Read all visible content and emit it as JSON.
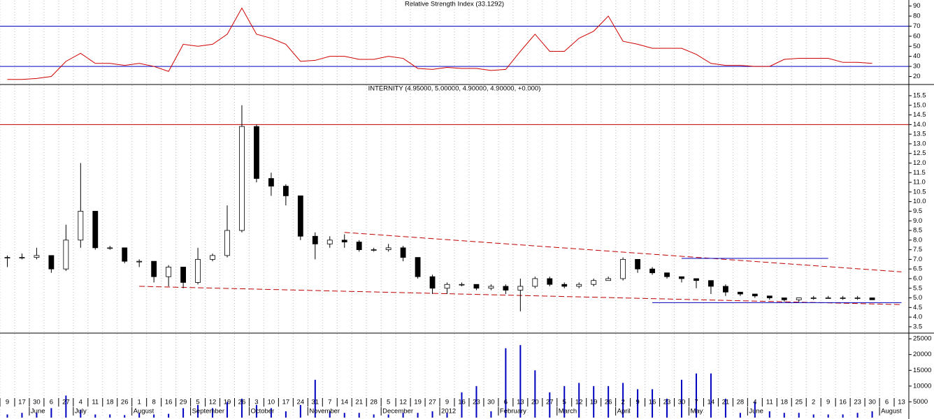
{
  "chart_data": [
    {
      "type": "line",
      "title": "Relative Strength Index (33.1292)",
      "color": "#d00000",
      "values": [
        17,
        17,
        18,
        20,
        35,
        43,
        33,
        33,
        31,
        33,
        30,
        25,
        52,
        50,
        52,
        62,
        88,
        62,
        58,
        52,
        35,
        36,
        40,
        40,
        37,
        37,
        40,
        38,
        28,
        27,
        29,
        28,
        28,
        26,
        27,
        45,
        62,
        45,
        45,
        58,
        65,
        80,
        55,
        52,
        48,
        48,
        48,
        42,
        33,
        31,
        31,
        30,
        30,
        37,
        38,
        38,
        38,
        34,
        34,
        33,
        null,
        null
      ],
      "ylim": [
        12,
        96
      ],
      "yticks": [
        20,
        30,
        40,
        50,
        60,
        70,
        80,
        90
      ],
      "hlines": [
        {
          "value": 30,
          "color": "#0000c0"
        },
        {
          "value": 70,
          "color": "#0000c0"
        }
      ],
      "grid": true
    },
    {
      "type": "candlestick",
      "title": "INTERNITY (4.95000, 5.00000, 4.90000, 4.90000, +0.000)",
      "open": [
        7.1,
        7.1,
        7.1,
        7.2,
        6.5,
        8.0,
        9.5,
        7.6,
        7.6,
        6.9,
        6.9,
        6.1,
        6.6,
        5.8,
        7.0,
        7.2,
        8.5,
        13.9,
        11.2,
        10.8,
        10.3,
        8.2,
        7.8,
        8.0,
        7.9,
        7.5,
        7.5,
        7.6,
        7.1,
        6.1,
        5.5,
        5.7,
        5.7,
        5.5,
        5.6,
        5.4,
        5.6,
        6.0,
        5.7,
        5.6,
        5.7,
        5.9,
        6.0,
        7.0,
        6.5,
        6.3,
        6.1,
        6.0,
        5.9,
        5.6,
        5.3,
        5.2,
        5.1,
        5.0,
        4.9,
        5.0,
        5.0,
        5.0,
        5.0,
        5.0,
        null,
        null
      ],
      "high": [
        7.2,
        7.3,
        7.6,
        7.2,
        8.8,
        12.0,
        9.5,
        7.7,
        7.6,
        7.0,
        6.9,
        6.7,
        6.6,
        7.6,
        7.3,
        9.8,
        15.0,
        14.0,
        11.5,
        10.9,
        10.3,
        8.4,
        8.2,
        8.3,
        8.0,
        7.6,
        7.8,
        7.7,
        7.1,
        6.2,
        5.8,
        5.8,
        5.7,
        5.7,
        5.7,
        6.0,
        6.1,
        6.1,
        5.8,
        5.8,
        6.0,
        6.1,
        7.1,
        7.0,
        6.6,
        6.3,
        6.1,
        6.0,
        5.9,
        5.7,
        5.3,
        5.2,
        5.1,
        5.0,
        5.0,
        5.1,
        5.1,
        5.1,
        5.1,
        5.0,
        null,
        null
      ],
      "low": [
        6.6,
        7.0,
        7.0,
        6.3,
        6.4,
        7.6,
        7.5,
        7.5,
        6.8,
        6.6,
        5.8,
        5.6,
        5.5,
        5.7,
        6.9,
        7.1,
        8.4,
        11.0,
        10.3,
        9.8,
        8.0,
        7.0,
        7.6,
        7.6,
        7.4,
        7.4,
        7.4,
        6.9,
        6.0,
        5.2,
        5.2,
        5.6,
        5.4,
        5.4,
        5.2,
        4.3,
        5.5,
        5.6,
        5.5,
        5.5,
        5.6,
        5.9,
        5.9,
        6.3,
        6.2,
        6.0,
        5.8,
        5.5,
        5.2,
        5.1,
        5.1,
        5.0,
        4.9,
        4.8,
        4.8,
        4.9,
        5.0,
        4.9,
        4.9,
        4.9,
        null,
        null
      ],
      "close": [
        7.1,
        7.1,
        7.2,
        6.5,
        8.0,
        9.5,
        7.6,
        7.6,
        6.9,
        6.9,
        6.1,
        6.6,
        5.8,
        7.0,
        7.2,
        8.5,
        13.9,
        11.2,
        10.8,
        10.3,
        8.2,
        7.8,
        8.0,
        7.9,
        7.5,
        7.5,
        7.6,
        7.1,
        6.1,
        5.5,
        5.7,
        5.7,
        5.5,
        5.6,
        5.4,
        5.6,
        6.0,
        5.7,
        5.6,
        5.7,
        5.9,
        6.0,
        7.0,
        6.5,
        6.3,
        6.1,
        6.0,
        5.9,
        5.6,
        5.3,
        5.2,
        5.1,
        5.0,
        4.9,
        5.0,
        5.0,
        5.0,
        5.0,
        5.0,
        4.9,
        null,
        null
      ],
      "ylim": [
        3.17,
        16.08
      ],
      "yticks": [
        {
          "value": 3.5,
          "label": "3.5"
        },
        {
          "value": 4,
          "label": "4.0"
        },
        {
          "value": 4.5,
          "label": "4.5"
        },
        {
          "value": 5,
          "label": "5.0"
        },
        {
          "value": 5.5,
          "label": "5.5"
        },
        {
          "value": 6,
          "label": "6.0"
        },
        {
          "value": 6.5,
          "label": "6.5"
        },
        {
          "value": 7,
          "label": "7.0"
        },
        {
          "value": 7.5,
          "label": "7.5"
        },
        {
          "value": 8,
          "label": "8.0"
        },
        {
          "value": 8.5,
          "label": "8.5"
        },
        {
          "value": 9,
          "label": "9.0"
        },
        {
          "value": 9.5,
          "label": "9.5"
        },
        {
          "value": 10,
          "label": "10.0"
        },
        {
          "value": 10.5,
          "label": "10.5"
        },
        {
          "value": 11,
          "label": "11.0"
        },
        {
          "value": 11.5,
          "label": "11.5"
        },
        {
          "value": 12,
          "label": "12.0"
        },
        {
          "value": 12.5,
          "label": "12.5"
        },
        {
          "value": 13,
          "label": "13.0"
        },
        {
          "value": 13.5,
          "label": "13.5"
        },
        {
          "value": 14,
          "label": "14.0"
        },
        {
          "value": 14.5,
          "label": "14.5"
        },
        {
          "value": 15,
          "label": "15.0"
        },
        {
          "value": 15.5,
          "label": "15.5"
        }
      ],
      "hlines": [
        {
          "value": 14,
          "color": "#c00000"
        }
      ],
      "trendlines": [
        {
          "x": [
            9,
            61
          ],
          "y": [
            5.6,
            4.65
          ],
          "color": "#c00000",
          "dashed": true
        },
        {
          "x": [
            23,
            61
          ],
          "y": [
            8.4,
            6.35
          ],
          "color": "#c00000",
          "dashed": true
        },
        {
          "x": [
            46,
            56
          ],
          "y": [
            7.05,
            7.05
          ],
          "color": "#0000c0",
          "dashed": false
        },
        {
          "x": [
            44,
            61
          ],
          "y": [
            4.75,
            4.75
          ],
          "color": "#0000c0",
          "dashed": false
        }
      ],
      "grid": true
    },
    {
      "type": "bar",
      "color": "#0000c0",
      "values": [
        1000,
        1500,
        1500,
        3000,
        7000,
        2500,
        1000,
        1000,
        800,
        1500,
        1000,
        1200,
        3000,
        4000,
        3000,
        5000,
        6000,
        4000,
        3000,
        2000,
        4000,
        12000,
        2000,
        1500,
        1500,
        1000,
        1000,
        1500,
        1500,
        2000,
        1500,
        8000,
        10000,
        2000,
        22000,
        23000,
        15000,
        8000,
        10000,
        11000,
        10000,
        10000,
        11000,
        9000,
        9000,
        6000,
        12000,
        14000,
        14000,
        6000,
        1500,
        5000,
        2000,
        1500,
        1500,
        1000,
        1000,
        1000,
        1500,
        2000,
        null,
        null
      ],
      "categories": [
        "9",
        "17",
        "30",
        "6",
        "27",
        "4",
        "11",
        "18",
        "26",
        "1",
        "8",
        "16",
        "29",
        "5",
        "12",
        "19",
        "26",
        "3",
        "10",
        "17",
        "24",
        "31",
        "7",
        "14",
        "21",
        "28",
        "5",
        "12",
        "19",
        "27",
        "9",
        "16",
        "23",
        "30",
        "6",
        "13",
        "20",
        "27",
        "5",
        "12",
        "19",
        "26",
        "2",
        "9",
        "16",
        "23",
        "30",
        "7",
        "14",
        "21",
        "28",
        "4",
        "11",
        "18",
        "25",
        "2",
        "9",
        "16",
        "23",
        "30",
        "6",
        "13"
      ],
      "month_labels": [
        null,
        null,
        "June",
        null,
        null,
        "July",
        null,
        null,
        null,
        "August",
        null,
        null,
        null,
        "September",
        null,
        null,
        null,
        "October",
        null,
        null,
        null,
        "November",
        null,
        null,
        null,
        null,
        "December",
        null,
        null,
        null,
        "2012",
        null,
        null,
        null,
        "February",
        null,
        null,
        null,
        "March",
        null,
        null,
        null,
        "April",
        null,
        null,
        null,
        null,
        "May",
        null,
        null,
        null,
        "June",
        null,
        null,
        null,
        null,
        null,
        null,
        null,
        null,
        "August",
        null
      ],
      "ylim": [
        0,
        26800
      ],
      "yticks": [
        5000,
        10000,
        15000,
        20000,
        25000
      ],
      "grid": true
    }
  ]
}
